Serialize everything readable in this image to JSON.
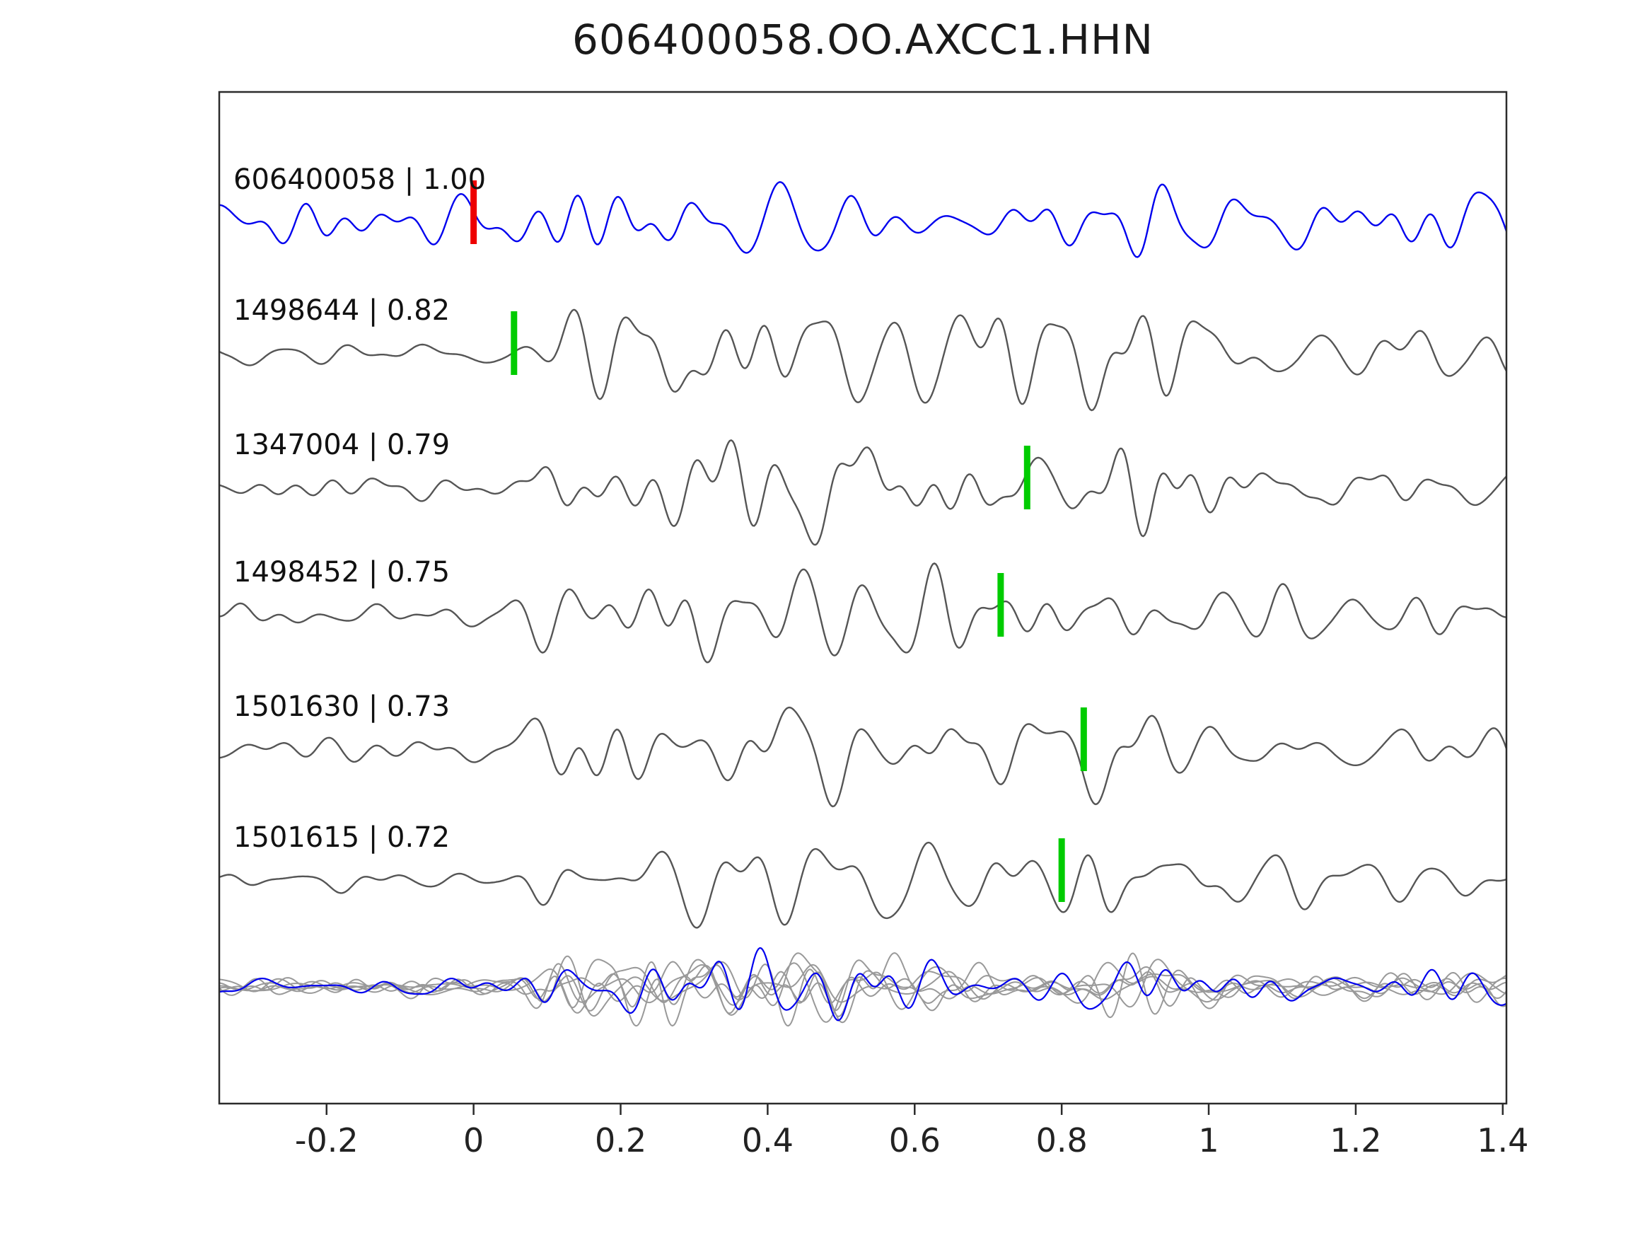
{
  "figure": {
    "title": "606400058.OO.AXCC1.HHN"
  },
  "colors": {
    "template": "#0000ee",
    "candidate": "#555555",
    "overlay_gray": "#999999",
    "pick_red": "#ee0000",
    "pick_green": "#00cc00",
    "axis": "#2b2b2b",
    "tick_text": "#222222",
    "label_text": "#111111"
  },
  "chart_data": {
    "type": "line",
    "title": "606400058.OO.AXCC1.HHN",
    "xlabel": "",
    "ylabel": "",
    "xlim": [
      -0.346,
      1.405
    ],
    "x_ticks": [
      -0.2,
      0,
      0.2,
      0.4,
      0.6,
      0.8,
      1,
      1.2,
      1.4
    ],
    "x_tick_labels": [
      "-0.2",
      "0",
      "0.2",
      "0.4",
      "0.6",
      "0.8",
      "1",
      "1.2",
      "1.4"
    ],
    "grid": false,
    "legend": "none",
    "traces": [
      {
        "label": "606400058 | 1.00",
        "event_id": "606400058",
        "correlation": 1.0,
        "color_key": "template",
        "pick_time": 0.0,
        "pick_color_key": "pick_red"
      },
      {
        "label": "1498644 | 0.82",
        "event_id": "1498644",
        "correlation": 0.82,
        "color_key": "candidate",
        "pick_time": 0.055,
        "pick_color_key": "pick_green"
      },
      {
        "label": "1347004 | 0.79",
        "event_id": "1347004",
        "correlation": 0.79,
        "color_key": "candidate",
        "pick_time": 0.753,
        "pick_color_key": "pick_green"
      },
      {
        "label": "1498452 | 0.75",
        "event_id": "1498452",
        "correlation": 0.75,
        "color_key": "candidate",
        "pick_time": 0.717,
        "pick_color_key": "pick_green"
      },
      {
        "label": "1501630 | 0.73",
        "event_id": "1501630",
        "correlation": 0.73,
        "color_key": "candidate",
        "pick_time": 0.83,
        "pick_color_key": "pick_green"
      },
      {
        "label": "1501615 | 0.72",
        "event_id": "1501615",
        "correlation": 0.72,
        "color_key": "candidate",
        "pick_time": 0.8,
        "pick_color_key": "pick_green"
      }
    ],
    "overlay_row": {
      "description": "all candidate traces and template superimposed",
      "gray_trace_count": 6,
      "blue_trace_count": 1
    }
  }
}
